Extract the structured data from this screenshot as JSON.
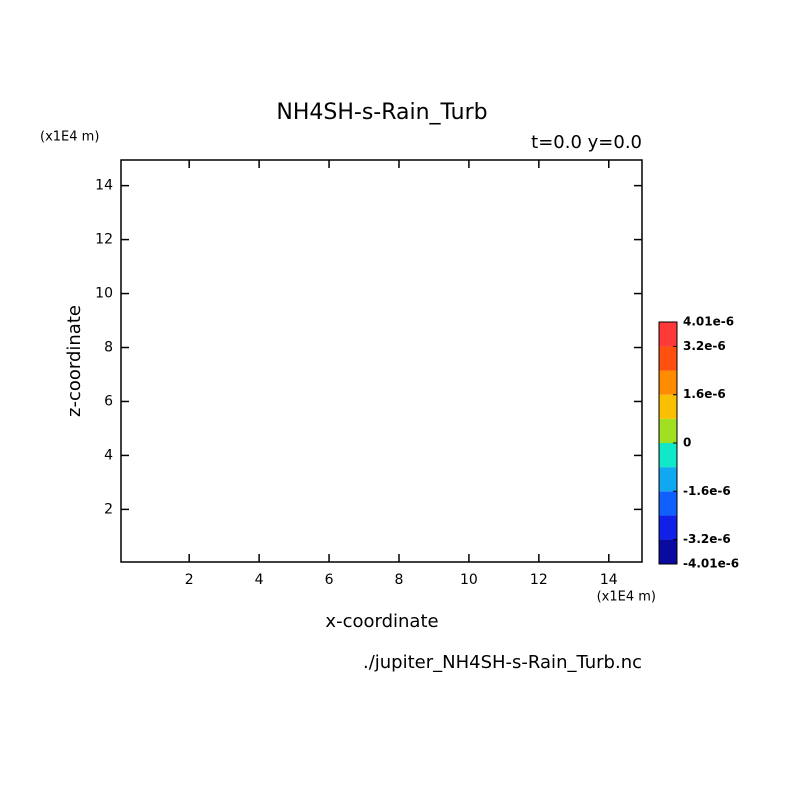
{
  "chart_data": {
    "type": "contour",
    "title": "NH4SH-s-Rain_Turb",
    "subtitle": "t=0.0 y=0.0",
    "x_label": "x-coordinate",
    "y_label": "z-coordinate",
    "x_unit": "(x1E4 m)",
    "y_unit": "(x1E4 m)",
    "footer": "./jupiter_NH4SH-s-Rain_Turb.nc",
    "xlim": [
      0.05,
      14.95
    ],
    "ylim": [
      0.05,
      14.95
    ],
    "xticks": [
      2,
      4,
      6,
      8,
      10,
      12,
      14
    ],
    "yticks": [
      2,
      4,
      6,
      8,
      10,
      12,
      14
    ],
    "colorbar": {
      "levels": [
        -4.01e-06,
        -3.2e-06,
        -2.4e-06,
        -1.6e-06,
        -8e-07,
        0,
        8e-07,
        1.6e-06,
        2.4e-06,
        3.2e-06,
        4.01e-06
      ],
      "colors": [
        "#0a0aa0",
        "#1020e8",
        "#1060ff",
        "#10a8f0",
        "#10e8c8",
        "#a0e020",
        "#f8c000",
        "#ff8c00",
        "#ff5010",
        "#ff3838"
      ],
      "ticks": [
        {
          "value": 4.01e-06,
          "label": "4.01e-6"
        },
        {
          "value": 3.2e-06,
          "label": "3.2e-6"
        },
        {
          "value": 1.6e-06,
          "label": "1.6e-6"
        },
        0,
        {
          "value": -1.6e-06,
          "label": "-1.6e-6"
        },
        {
          "value": -3.2e-06,
          "label": "-3.2e-6"
        },
        {
          "value": -4.01e-06,
          "label": "-4.01e-6"
        }
      ]
    }
  }
}
